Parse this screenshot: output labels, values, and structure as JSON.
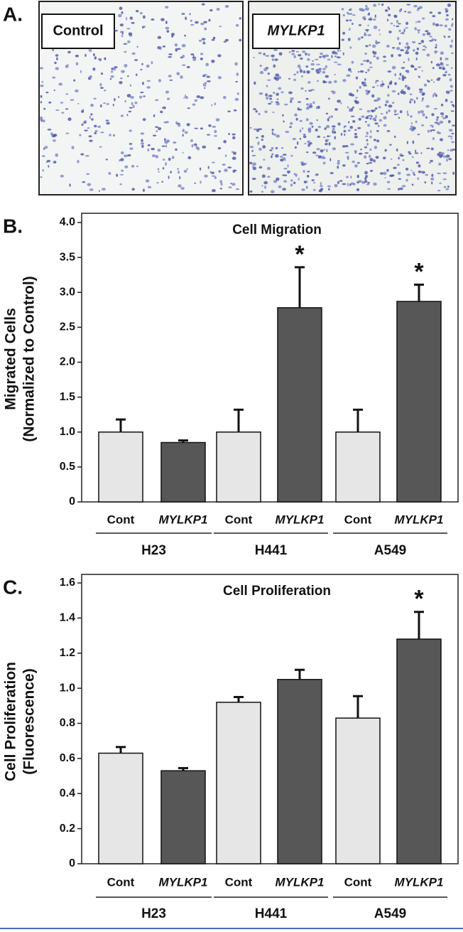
{
  "panel_a": {
    "panel_label": "A.",
    "images": [
      "Control",
      "MYLKP1"
    ]
  },
  "chart_data": [
    {
      "type": "bar",
      "panel_label": "B.",
      "title": "Cell Migration",
      "ylabel": [
        "Migrated Cells",
        "(Normalized to Control)"
      ],
      "categories": [
        "Cont",
        "MYLKP1",
        "Cont",
        "MYLKP1",
        "Cont",
        "MYLKP1"
      ],
      "groups": [
        "H23",
        "H441",
        "A549"
      ],
      "values": [
        1.0,
        0.85,
        1.0,
        2.78,
        1.0,
        2.87
      ],
      "errors": [
        0.18,
        0.03,
        0.32,
        0.58,
        0.32,
        0.24
      ],
      "colors": [
        "#e6e6e6",
        "#575757",
        "#e6e6e6",
        "#575757",
        "#e6e6e6",
        "#575757"
      ],
      "significant": [
        false,
        false,
        false,
        true,
        false,
        true
      ],
      "significance_label": "*",
      "ylim": [
        0,
        4
      ],
      "yticks": [
        0,
        0.5,
        {
          "value": 1,
          "label": "1.0"
        },
        1.5,
        {
          "value": 2,
          "label": "2.0"
        },
        2.5,
        {
          "value": 3,
          "label": "3.0"
        },
        3.5,
        {
          "value": 4,
          "label": "4.0"
        }
      ]
    },
    {
      "type": "bar",
      "panel_label": "C.",
      "title": "Cell Proliferation",
      "ylabel": [
        "Cell Proliferation",
        "(Fluorescence)"
      ],
      "categories": [
        "Cont",
        "MYLKP1",
        "Cont",
        "MYLKP1",
        "Cont",
        "MYLKP1"
      ],
      "groups": [
        "H23",
        "H441",
        "A549"
      ],
      "values": [
        0.63,
        0.53,
        0.92,
        1.05,
        0.83,
        1.28
      ],
      "errors": [
        0.035,
        0.015,
        0.03,
        0.055,
        0.125,
        0.155
      ],
      "colors": [
        "#e6e6e6",
        "#575757",
        "#e6e6e6",
        "#575757",
        "#e6e6e6",
        "#575757"
      ],
      "significant": [
        false,
        false,
        false,
        false,
        false,
        true
      ],
      "significance_label": "*",
      "ylim": [
        0,
        1.6
      ],
      "yticks": [
        0,
        0.2,
        0.4,
        0.6,
        0.8,
        {
          "value": 1,
          "label": "1.0"
        },
        1.2,
        1.4,
        1.6
      ]
    }
  ]
}
